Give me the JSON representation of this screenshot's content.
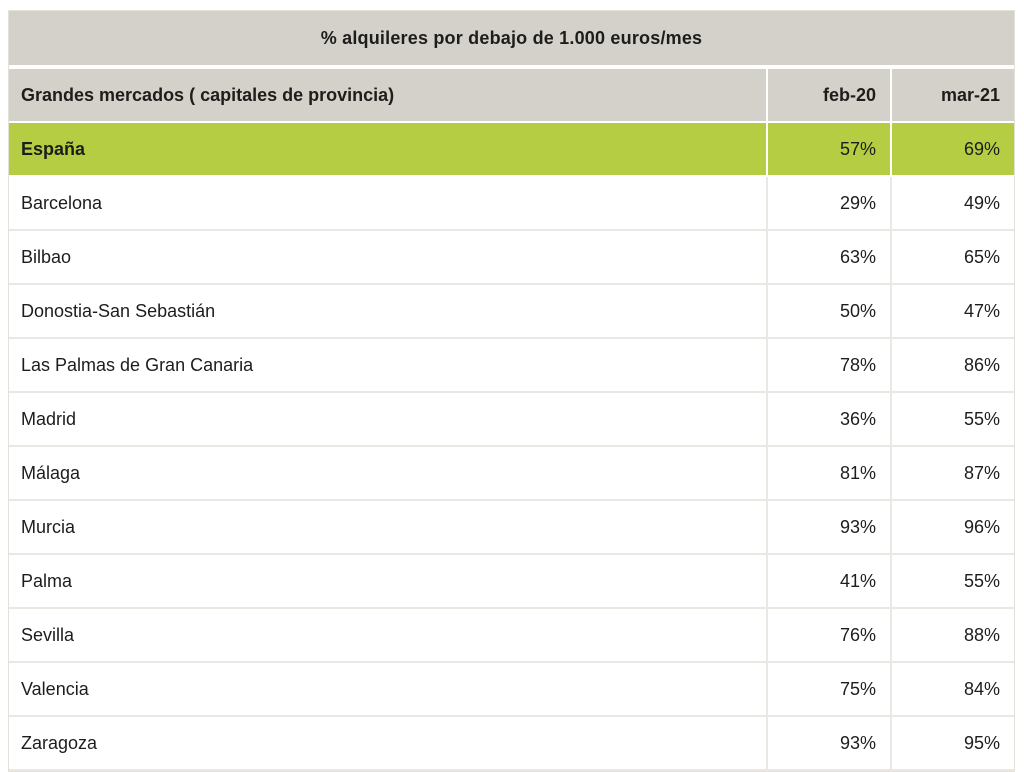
{
  "colors": {
    "header_bg": "#d3d1c9",
    "highlight_bg": "#b4cd43",
    "row_divider": "#eae8e2",
    "text": "#1d1d1b",
    "page_bg": "#ffffff"
  },
  "chart_data": {
    "type": "table",
    "title": "% alquileres por debajo de 1.000 euros/mes",
    "columns": {
      "0": "Grandes mercados ( capitales de provincia)",
      "1": "feb-20",
      "2": "mar-21"
    },
    "highlight_row": "España",
    "rows": [
      {
        "market": "España",
        "feb_20": "57%",
        "mar_21": "69%",
        "highlighted": true
      },
      {
        "market": "Barcelona",
        "feb_20": "29%",
        "mar_21": "49%",
        "highlighted": false
      },
      {
        "market": "Bilbao",
        "feb_20": "63%",
        "mar_21": "65%",
        "highlighted": false
      },
      {
        "market": "Donostia-San Sebastián",
        "feb_20": "50%",
        "mar_21": "47%",
        "highlighted": false
      },
      {
        "market": "Las Palmas de Gran Canaria",
        "feb_20": "78%",
        "mar_21": "86%",
        "highlighted": false
      },
      {
        "market": "Madrid",
        "feb_20": "36%",
        "mar_21": "55%",
        "highlighted": false
      },
      {
        "market": "Málaga",
        "feb_20": "81%",
        "mar_21": "87%",
        "highlighted": false
      },
      {
        "market": "Murcia",
        "feb_20": "93%",
        "mar_21": "96%",
        "highlighted": false
      },
      {
        "market": "Palma",
        "feb_20": "41%",
        "mar_21": "55%",
        "highlighted": false
      },
      {
        "market": "Sevilla",
        "feb_20": "76%",
        "mar_21": "88%",
        "highlighted": false
      },
      {
        "market": "Valencia",
        "feb_20": "75%",
        "mar_21": "84%",
        "highlighted": false
      },
      {
        "market": "Zaragoza",
        "feb_20": "93%",
        "mar_21": "95%",
        "highlighted": false
      }
    ]
  }
}
